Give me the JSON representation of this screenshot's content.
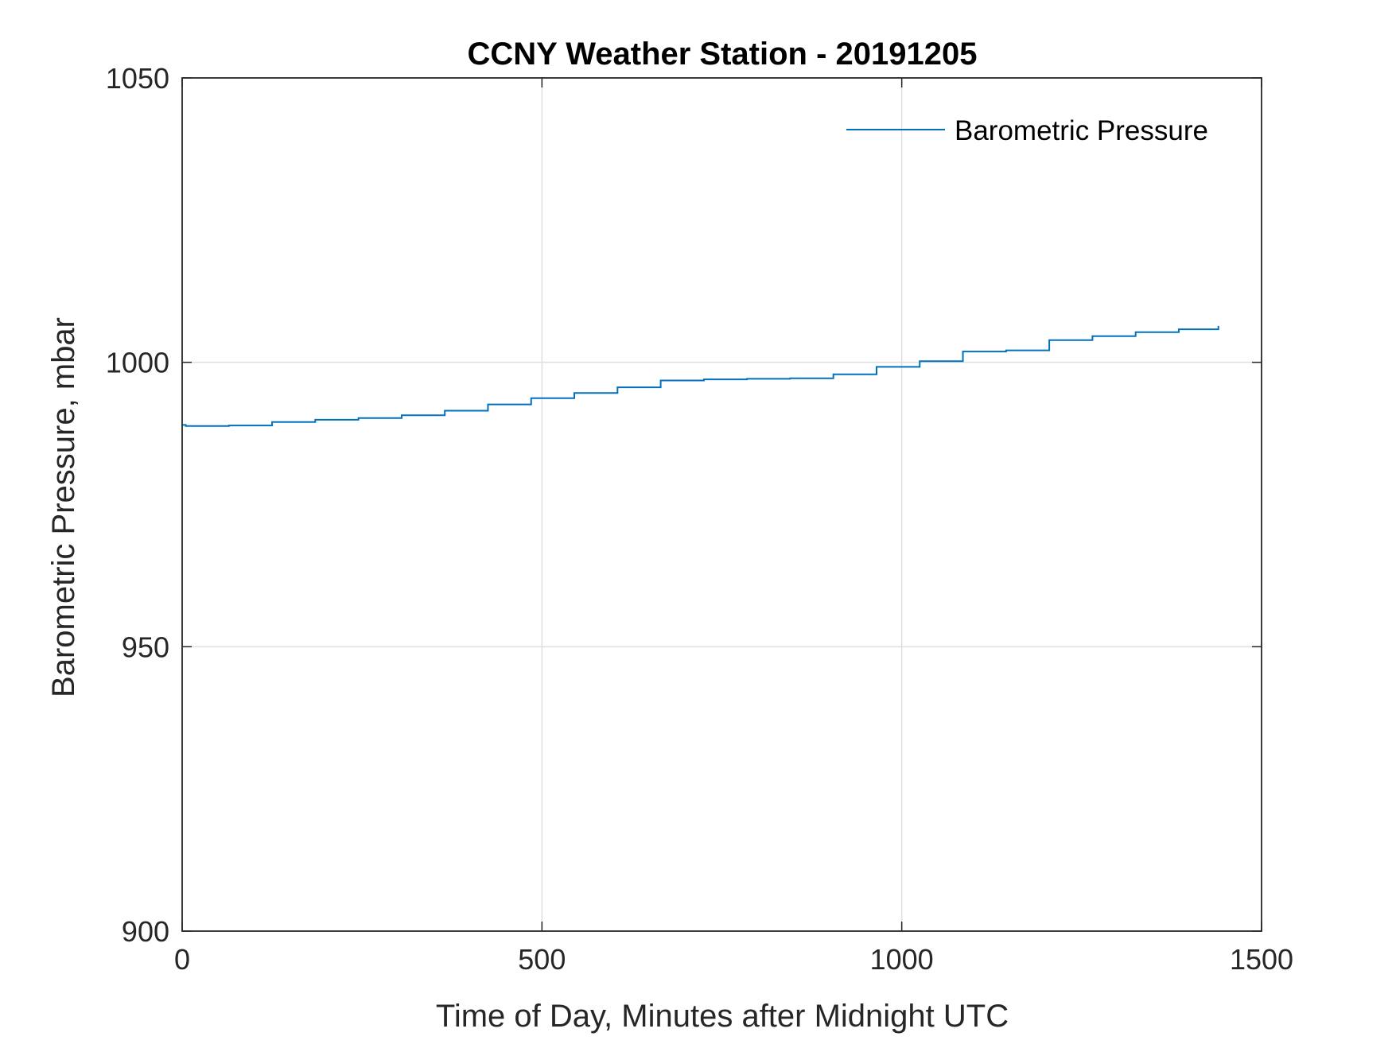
{
  "chart_data": {
    "type": "line",
    "title": "CCNY Weather Station - 20191205",
    "xlabel": "Time of Day, Minutes after Midnight UTC",
    "ylabel": "Barometric Pressure, mbar",
    "xlim": [
      0,
      1500
    ],
    "ylim": [
      900,
      1050
    ],
    "xticks": [
      "0",
      "500",
      "1000",
      "1500"
    ],
    "yticks": [
      "900",
      "950",
      "1000",
      "1050"
    ],
    "grid": true,
    "legend": {
      "position": "top-right",
      "entries": [
        "Barometric Pressure"
      ]
    },
    "series": [
      {
        "name": "Barometric Pressure",
        "color": "#0072BD",
        "shape": "step",
        "x": [
          0,
          5,
          65,
          125,
          185,
          245,
          305,
          365,
          425,
          485,
          545,
          605,
          665,
          725,
          785,
          845,
          905,
          965,
          1025,
          1085,
          1145,
          1205,
          1265,
          1325,
          1385,
          1440
        ],
        "y": [
          989.0,
          988.8,
          988.9,
          989.5,
          989.9,
          990.2,
          990.7,
          991.5,
          992.6,
          993.7,
          994.6,
          995.6,
          996.8,
          997.0,
          997.1,
          997.2,
          997.9,
          999.2,
          1000.2,
          1001.9,
          1002.1,
          1003.9,
          1004.6,
          1005.3,
          1005.8,
          1006.4
        ]
      }
    ]
  },
  "colors": {
    "axis": "#262626",
    "grid": "#dfdfdf",
    "series": "#0072BD",
    "background": "#ffffff"
  }
}
